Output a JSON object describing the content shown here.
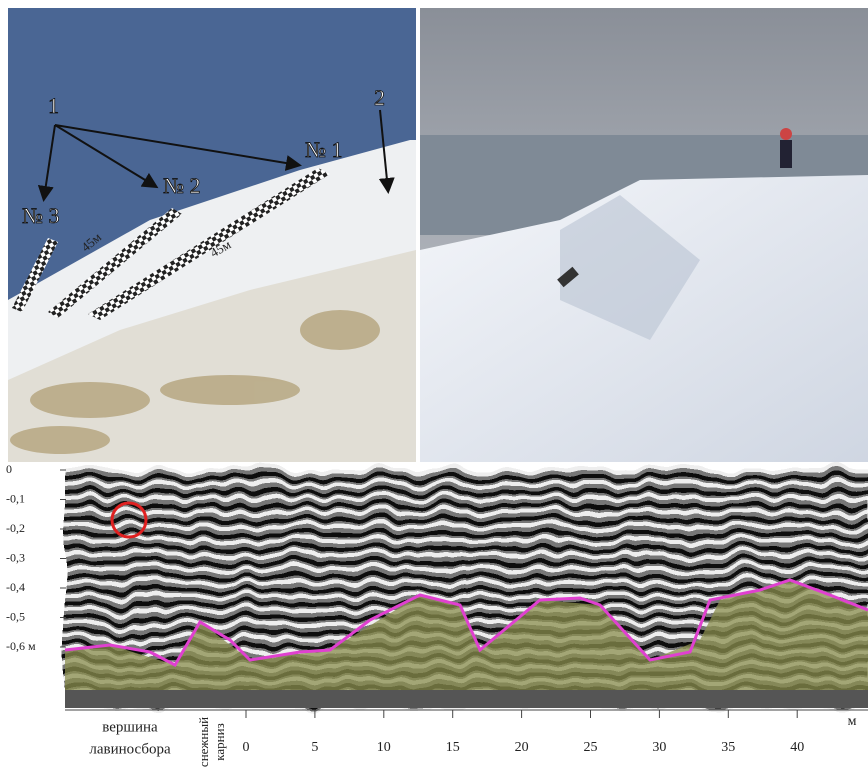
{
  "photo_left": {
    "labels": {
      "group": "1",
      "top": "2",
      "n1": "№ 1",
      "n2": "№ 2",
      "n3": "№ 3",
      "len1": "45м",
      "len2": "45м"
    }
  },
  "radargram": {
    "yticks": [
      {
        "value": 0,
        "label": "0"
      },
      {
        "value": -0.1,
        "label": "-0,1"
      },
      {
        "value": -0.2,
        "label": "-0,2"
      },
      {
        "value": -0.3,
        "label": "-0,3"
      },
      {
        "value": -0.4,
        "label": "-0,4"
      },
      {
        "value": -0.5,
        "label": "-0,5"
      },
      {
        "value": -0.6,
        "label": "-0,6 м"
      }
    ],
    "xticks": [
      0,
      5,
      10,
      15,
      20,
      25,
      30,
      35,
      40
    ],
    "x_unit": "м",
    "annotations": {
      "summit": [
        "вершина",
        "лавиносбора"
      ],
      "cornice": [
        "снежный",
        "карниз"
      ]
    }
  }
}
